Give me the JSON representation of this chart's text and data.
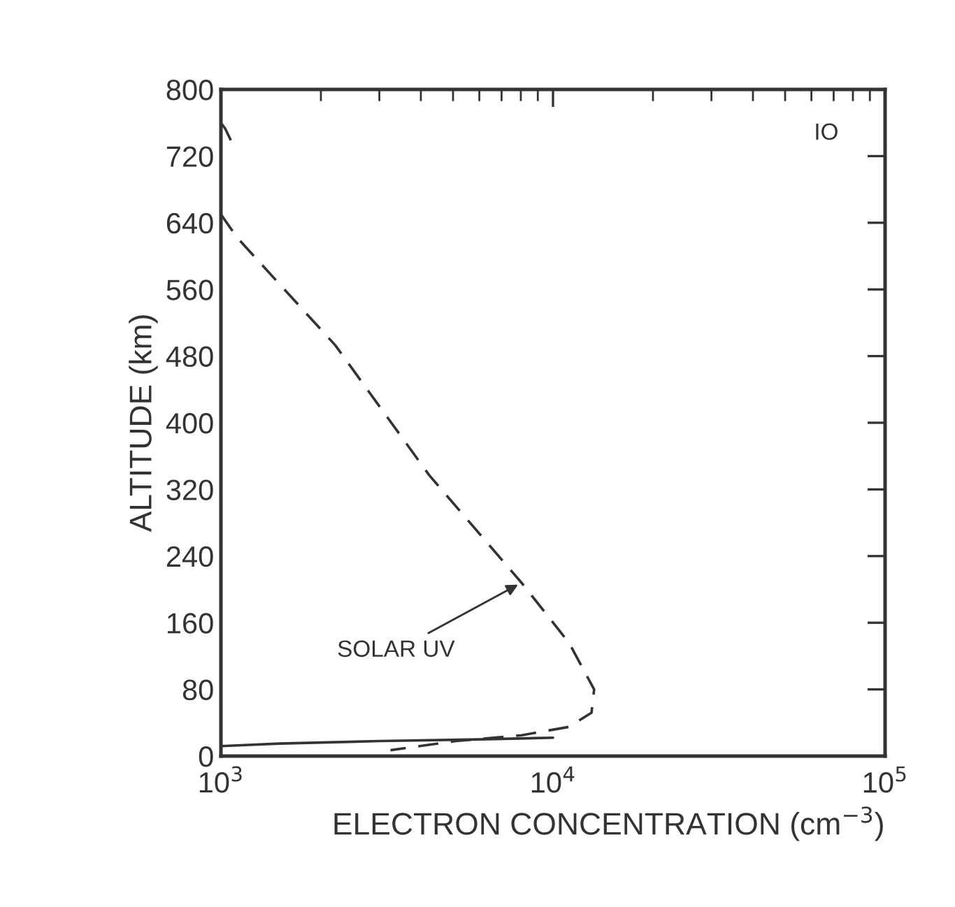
{
  "chart_data": {
    "type": "line",
    "xlabel": "ELECTRON CONCENTRATION (cm$^{−3}$)",
    "ylabel": "ALTITUDE (km)",
    "log": "x",
    "xlim": [
      1000,
      100000
    ],
    "xticks": [
      {
        "value": 1000,
        "label": "10$^{3}$"
      },
      {
        "value": 10000,
        "label": "10$^{4}$"
      },
      {
        "value": 100000,
        "label": "10$^{5}$"
      }
    ],
    "ylim": [
      0,
      800
    ],
    "yticks": [
      0,
      80,
      160,
      240,
      320,
      400,
      480,
      560,
      640,
      720,
      800
    ],
    "series": [
      {
        "color": "#333333",
        "line_style": "dashed",
        "x": [
          1000,
          1120,
          2210,
          4240,
          8040,
          11170,
          13300,
          13060,
          11170,
          8040,
          5100,
          3240
        ],
        "values": [
          650,
          622,
          493,
          337,
          208,
          136,
          80,
          52,
          35,
          25,
          18,
          7
        ]
      },
      {
        "color": "#333333",
        "line_style": "dashed",
        "x": [
          1000,
          1030,
          1080
        ],
        "values": [
          760,
          753,
          736
        ]
      },
      {
        "color": "#333333",
        "line_style": "solid",
        "x": [
          1000,
          1500,
          3000,
          6000,
          10000
        ],
        "values": [
          12,
          15,
          18,
          20,
          22
        ]
      }
    ],
    "annotations": [
      {
        "text": "SOLAR UV",
        "x": 8040,
        "y": 208
      },
      "IO"
    ],
    "grid": false,
    "legend": false
  }
}
